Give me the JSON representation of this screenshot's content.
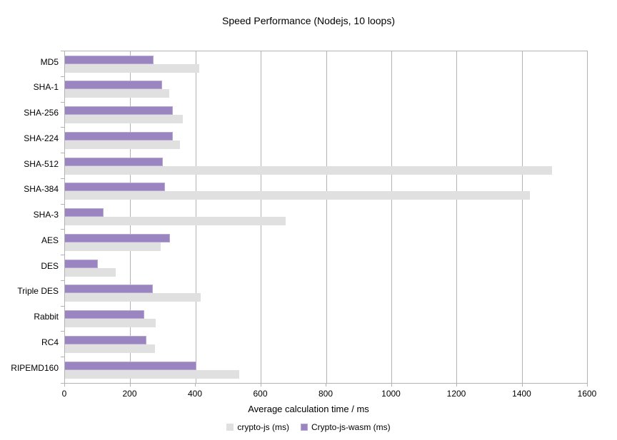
{
  "title": "Speed Performance (Nodejs, 10 loops)",
  "chart_data": {
    "type": "bar",
    "orientation": "horizontal",
    "title": "Speed Performance (Nodejs, 10 loops)",
    "xlabel": "Average calculation time / ms",
    "ylabel": "",
    "xlim": [
      0,
      1600
    ],
    "xticks": [
      0,
      200,
      400,
      600,
      800,
      1000,
      1200,
      1400,
      1600
    ],
    "grid": true,
    "legend_position": "bottom",
    "categories": [
      "MD5",
      "SHA-1",
      "SHA-256",
      "SHA-224",
      "SHA-512",
      "SHA-384",
      "SHA-3",
      "AES",
      "DES",
      "Triple DES",
      "Rabbit",
      "RC4",
      "RIPEMD160"
    ],
    "series": [
      {
        "name": "crypto-js (ms)",
        "color": "#e0e0e0",
        "values": [
          412,
          320,
          362,
          353,
          1492,
          1425,
          676,
          293,
          155,
          416,
          277,
          275,
          535
        ]
      },
      {
        "name": "Crypto-js-wasm (ms)",
        "color": "#9a85c0",
        "values": [
          270,
          295,
          329,
          329,
          297,
          305,
          117,
          320,
          98,
          266,
          241,
          248,
          400
        ]
      }
    ]
  },
  "colors": {
    "grid": "#b3b3b3",
    "wasm_border": "#b7a8d3",
    "text": "#000000",
    "background": "#ffffff"
  }
}
